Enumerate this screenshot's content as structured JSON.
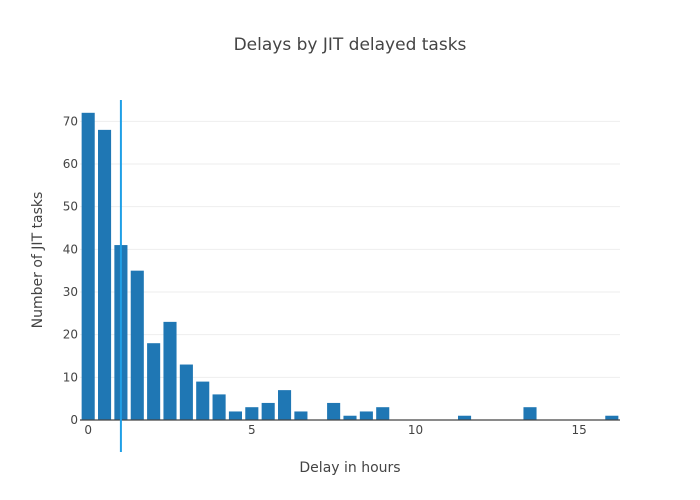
{
  "chart_data": {
    "type": "bar",
    "title": "Delays by JIT delayed tasks",
    "xlabel": "Delay in hours",
    "ylabel": "Number of JIT tasks",
    "bin_width": 0.5,
    "x": [
      0,
      0.5,
      1,
      1.5,
      2,
      2.5,
      3,
      3.5,
      4,
      4.5,
      5,
      5.5,
      6,
      6.5,
      7.5,
      8,
      8.5,
      9,
      11.5,
      13.5,
      16
    ],
    "values": [
      72,
      68,
      41,
      35,
      18,
      23,
      13,
      9,
      6,
      2,
      3,
      4,
      7,
      2,
      4,
      1,
      2,
      3,
      1,
      3,
      1
    ],
    "xlim": [
      -0.25,
      16.25
    ],
    "ylim": [
      0,
      75
    ],
    "xticks": [
      0,
      5,
      10,
      15
    ],
    "yticks": [
      0,
      10,
      20,
      30,
      40,
      50,
      60,
      70
    ],
    "vertical_line_x": 1,
    "bar_color": "#1f77b4",
    "line_color": "#1f9fe6",
    "grid": true
  }
}
